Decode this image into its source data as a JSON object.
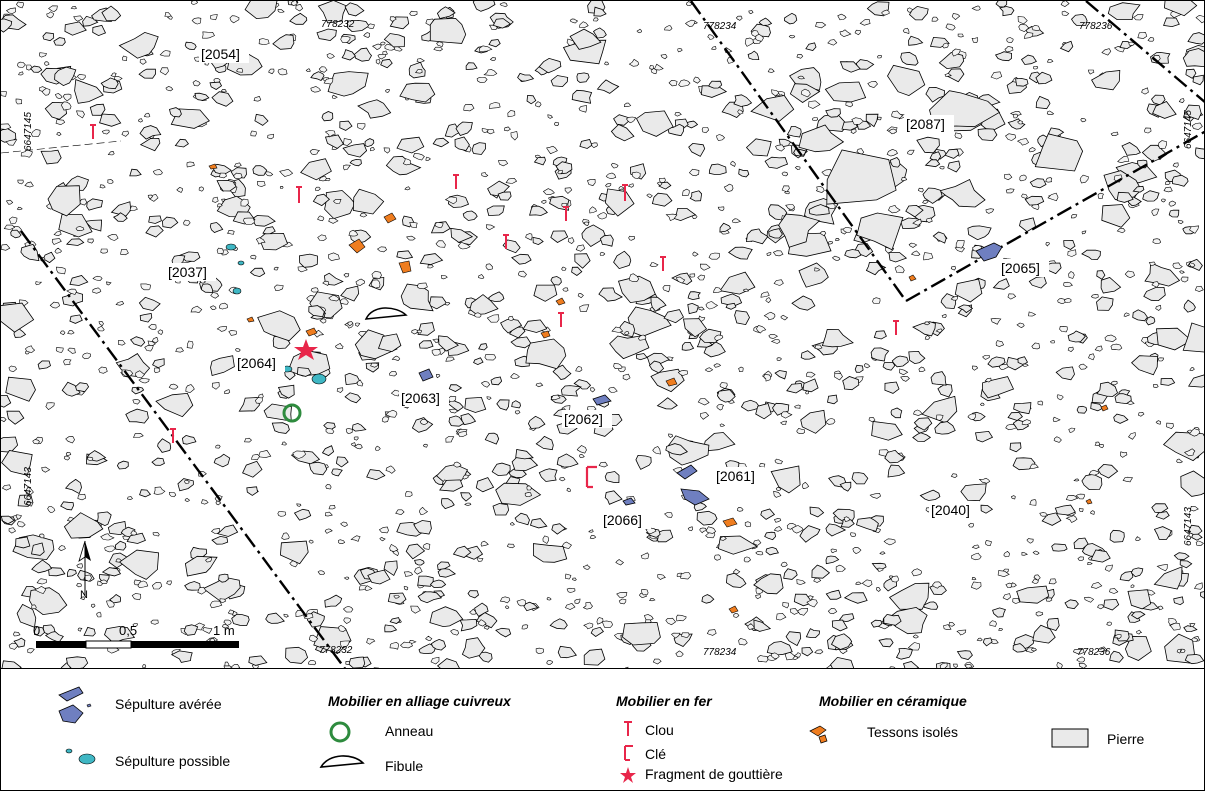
{
  "map": {
    "units": [
      {
        "id": "u2054",
        "label": "[2054]"
      },
      {
        "id": "u2087",
        "label": "[2087]"
      },
      {
        "id": "u2037",
        "label": "[2037]"
      },
      {
        "id": "u2065",
        "label": "[2065]"
      },
      {
        "id": "u2064",
        "label": "[2064]"
      },
      {
        "id": "u2063",
        "label": "[2063]"
      },
      {
        "id": "u2062",
        "label": "[2062]"
      },
      {
        "id": "u2061",
        "label": "[2061]"
      },
      {
        "id": "u2066",
        "label": "[2066]"
      },
      {
        "id": "u2040",
        "label": "[2040]"
      }
    ],
    "coords": {
      "top_778232": "778232",
      "top_778234": "778234",
      "top_778236": "778236",
      "bottom_778232": "778232",
      "bottom_778234": "778234",
      "bottom_778236": "778236",
      "left_6647145": "6647145",
      "right_6647145": "6647145",
      "left_6647143": "6647143",
      "right_6647143": "6647143"
    },
    "north_label": "N",
    "scale": {
      "tick_0": "0",
      "tick_mid": "0,5",
      "tick_end": "1 m"
    }
  },
  "legend": {
    "sepulture_averee": "Sépulture avérée",
    "sepulture_possible": "Sépulture possible",
    "head_alliage": "Mobilier en alliage cuivreux",
    "anneau": "Anneau",
    "fibule": "Fibule",
    "head_fer": "Mobilier en fer",
    "clou": "Clou",
    "cle": "Clé",
    "gouttiere": "Fragment de gouttière",
    "head_ceramique": "Mobilier en céramique",
    "tessons": "Tessons isolés",
    "pierre": "Pierre"
  },
  "colors": {
    "sepulture": "#6f7fc0",
    "possible": "#3fb7c4",
    "anneau": "#2e8b3e",
    "fer": "#e8264a",
    "ceramique": "#ef7d1f",
    "pierre": "#eaeaea"
  }
}
